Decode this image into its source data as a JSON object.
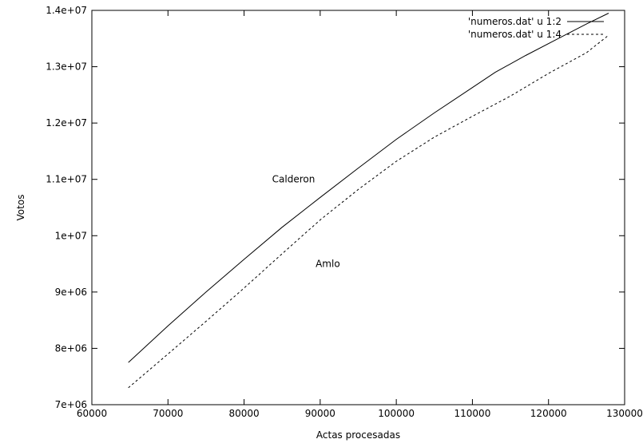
{
  "chart_data": {
    "type": "line",
    "xlabel": "Actas procesadas",
    "ylabel": "Votos",
    "xlim": [
      60000,
      130000
    ],
    "ylim": [
      7000000,
      14000000
    ],
    "x_ticks": [
      60000,
      70000,
      80000,
      90000,
      100000,
      110000,
      120000,
      130000
    ],
    "x_tick_labels": [
      "60000",
      "70000",
      "80000",
      "90000",
      "100000",
      "110000",
      "120000",
      "130000"
    ],
    "y_ticks": [
      7000000,
      8000000,
      9000000,
      10000000,
      11000000,
      12000000,
      13000000,
      14000000
    ],
    "y_tick_labels": [
      "7e+06",
      "8e+06",
      "9e+06",
      "1e+07",
      "1.1e+07",
      "1.2e+07",
      "1.3e+07",
      "1.4e+07"
    ],
    "grid": false,
    "legend_position": "top-right",
    "series": [
      {
        "name": "'numeros.dat' u 1:2",
        "style": "solid",
        "color": "#000000",
        "x": [
          64800,
          70000,
          75000,
          80000,
          85000,
          90000,
          95000,
          100000,
          105000,
          110000,
          113000,
          117000,
          121000,
          125000,
          127900
        ],
        "y": [
          7750000,
          8400000,
          9000000,
          9580000,
          10150000,
          10680000,
          11200000,
          11710000,
          12180000,
          12630000,
          12900000,
          13200000,
          13480000,
          13760000,
          13950000
        ]
      },
      {
        "name": "'numeros.dat' u 1:4",
        "style": "dashed",
        "color": "#000000",
        "x": [
          64800,
          70000,
          75000,
          80000,
          85000,
          90000,
          95000,
          100000,
          105000,
          110000,
          115000,
          120000,
          125000,
          127900
        ],
        "y": [
          7300000,
          7900000,
          8480000,
          9070000,
          9680000,
          10280000,
          10820000,
          11320000,
          11750000,
          12120000,
          12480000,
          12880000,
          13250000,
          13560000
        ]
      }
    ],
    "annotations": [
      {
        "text": "Calderon",
        "x": 86500,
        "y": 11000000
      },
      {
        "text": "Amlo",
        "x": 91000,
        "y": 9500000
      }
    ]
  }
}
